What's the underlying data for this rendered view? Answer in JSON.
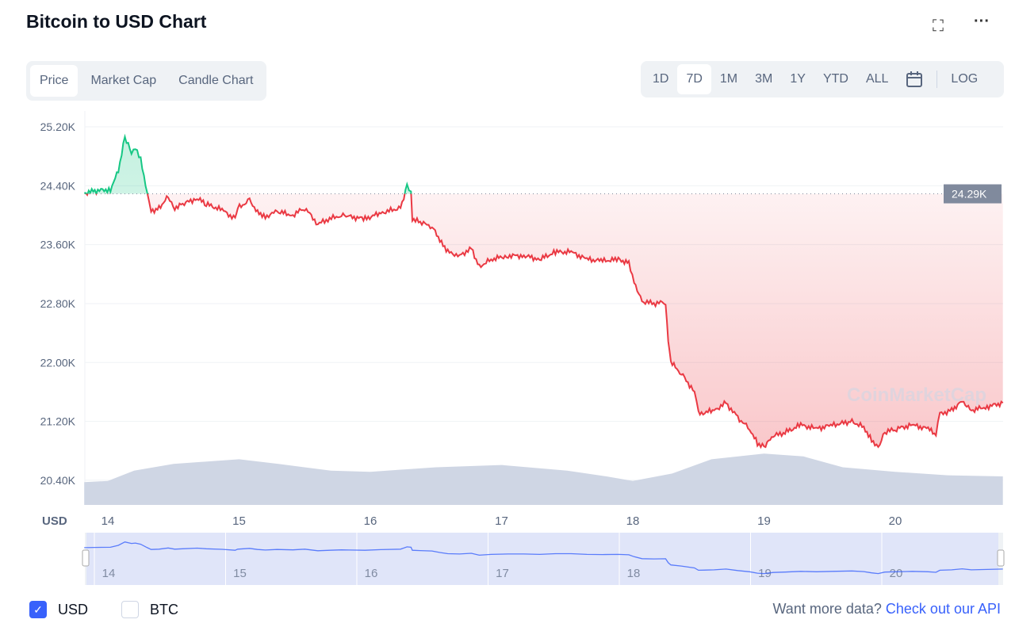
{
  "header": {
    "title": "Bitcoin to USD Chart",
    "fullscreen_icon": "expand-icon",
    "more_icon": "more-dots-icon"
  },
  "tabs": [
    {
      "label": "Price",
      "active": true
    },
    {
      "label": "Market Cap",
      "active": false
    },
    {
      "label": "Candle Chart",
      "active": false
    }
  ],
  "ranges": [
    {
      "label": "1D"
    },
    {
      "label": "7D",
      "active": true
    },
    {
      "label": "1M"
    },
    {
      "label": "3M"
    },
    {
      "label": "1Y"
    },
    {
      "label": "YTD"
    },
    {
      "label": "ALL"
    }
  ],
  "log_label": "LOG",
  "calendar_icon": "calendar-icon",
  "watermark": "CoinMarketCap",
  "footer": {
    "usd_label": "USD",
    "usd_checked": true,
    "btc_label": "BTC",
    "btc_checked": false,
    "api_text": "Want more data?",
    "api_link": "Check out our API"
  },
  "colors": {
    "up": "#16c784",
    "down": "#ea3943",
    "volume": "#cfd6e4",
    "accent": "#3861fb"
  },
  "chart_data": {
    "type": "line",
    "title": "Bitcoin to USD Chart",
    "xlabel": "",
    "ylabel": "USD",
    "currency_label": "USD",
    "ylim": [
      20.0,
      25.45
    ],
    "xlim": [
      13.82,
      20.82
    ],
    "yticks": [
      {
        "v": 25.2,
        "label": "25.20K"
      },
      {
        "v": 24.4,
        "label": "24.40K"
      },
      {
        "v": 23.6,
        "label": "23.60K"
      },
      {
        "v": 22.8,
        "label": "22.80K"
      },
      {
        "v": 22.0,
        "label": "22.00K"
      },
      {
        "v": 21.2,
        "label": "21.20K"
      },
      {
        "v": 20.4,
        "label": "20.40K"
      }
    ],
    "xticks": [
      {
        "v": 14,
        "label": "14"
      },
      {
        "v": 15,
        "label": "15"
      },
      {
        "v": 16,
        "label": "16"
      },
      {
        "v": 17,
        "label": "17"
      },
      {
        "v": 18,
        "label": "18"
      },
      {
        "v": 19,
        "label": "19"
      },
      {
        "v": 20,
        "label": "20"
      }
    ],
    "reference": {
      "value": 24.29,
      "label": "24.29K"
    },
    "price_k": [
      [
        13.82,
        24.3
      ],
      [
        13.9,
        24.33
      ],
      [
        14.02,
        24.35
      ],
      [
        14.08,
        24.6
      ],
      [
        14.13,
        25.05
      ],
      [
        14.18,
        24.85
      ],
      [
        14.21,
        24.9
      ],
      [
        14.25,
        24.75
      ],
      [
        14.3,
        24.3
      ],
      [
        14.33,
        24.05
      ],
      [
        14.39,
        24.1
      ],
      [
        14.46,
        24.25
      ],
      [
        14.51,
        24.1
      ],
      [
        14.57,
        24.15
      ],
      [
        14.68,
        24.23
      ],
      [
        14.75,
        24.15
      ],
      [
        14.87,
        24.07
      ],
      [
        14.97,
        23.95
      ],
      [
        14.99,
        24.1
      ],
      [
        15.08,
        24.2
      ],
      [
        15.14,
        24.05
      ],
      [
        15.2,
        23.98
      ],
      [
        15.29,
        24.05
      ],
      [
        15.41,
        24.0
      ],
      [
        15.5,
        24.1
      ],
      [
        15.6,
        23.88
      ],
      [
        15.69,
        23.95
      ],
      [
        15.78,
        24.0
      ],
      [
        15.84,
        23.98
      ],
      [
        15.96,
        23.95
      ],
      [
        16.08,
        24.03
      ],
      [
        16.23,
        24.1
      ],
      [
        16.28,
        24.4
      ],
      [
        16.31,
        24.35
      ],
      [
        16.32,
        23.95
      ],
      [
        16.38,
        23.9
      ],
      [
        16.47,
        23.85
      ],
      [
        16.53,
        23.65
      ],
      [
        16.59,
        23.5
      ],
      [
        16.68,
        23.45
      ],
      [
        16.77,
        23.55
      ],
      [
        16.83,
        23.3
      ],
      [
        16.92,
        23.4
      ],
      [
        17.05,
        23.45
      ],
      [
        17.17,
        23.45
      ],
      [
        17.29,
        23.4
      ],
      [
        17.41,
        23.5
      ],
      [
        17.53,
        23.5
      ],
      [
        17.65,
        23.4
      ],
      [
        17.77,
        23.38
      ],
      [
        17.89,
        23.4
      ],
      [
        17.97,
        23.35
      ],
      [
        18.01,
        23.1
      ],
      [
        18.07,
        22.83
      ],
      [
        18.16,
        22.8
      ],
      [
        18.25,
        22.82
      ],
      [
        18.27,
        22.3
      ],
      [
        18.29,
        22.0
      ],
      [
        18.37,
        21.85
      ],
      [
        18.47,
        21.6
      ],
      [
        18.5,
        21.3
      ],
      [
        18.62,
        21.35
      ],
      [
        18.71,
        21.45
      ],
      [
        18.8,
        21.25
      ],
      [
        18.89,
        21.1
      ],
      [
        18.95,
        20.9
      ],
      [
        19.0,
        20.85
      ],
      [
        19.07,
        21.0
      ],
      [
        19.16,
        21.05
      ],
      [
        19.28,
        21.15
      ],
      [
        19.4,
        21.1
      ],
      [
        19.52,
        21.15
      ],
      [
        19.67,
        21.2
      ],
      [
        19.76,
        21.12
      ],
      [
        19.82,
        20.95
      ],
      [
        19.87,
        20.85
      ],
      [
        19.92,
        21.05
      ],
      [
        20.01,
        21.1
      ],
      [
        20.13,
        21.15
      ],
      [
        20.25,
        21.1
      ],
      [
        20.31,
        21.02
      ],
      [
        20.34,
        21.3
      ],
      [
        20.43,
        21.35
      ],
      [
        20.51,
        21.48
      ],
      [
        20.58,
        21.35
      ],
      [
        20.7,
        21.4
      ],
      [
        20.82,
        21.45
      ]
    ],
    "volume_rel": [
      [
        13.82,
        0.4
      ],
      [
        14.0,
        0.42
      ],
      [
        14.2,
        0.6
      ],
      [
        14.5,
        0.72
      ],
      [
        15.0,
        0.8
      ],
      [
        15.3,
        0.72
      ],
      [
        15.7,
        0.6
      ],
      [
        16.0,
        0.58
      ],
      [
        16.5,
        0.66
      ],
      [
        17.0,
        0.7
      ],
      [
        17.5,
        0.6
      ],
      [
        17.8,
        0.5
      ],
      [
        18.0,
        0.42
      ],
      [
        18.3,
        0.55
      ],
      [
        18.6,
        0.8
      ],
      [
        19.0,
        0.9
      ],
      [
        19.3,
        0.85
      ],
      [
        19.6,
        0.66
      ],
      [
        20.0,
        0.58
      ],
      [
        20.4,
        0.52
      ],
      [
        20.82,
        0.5
      ]
    ]
  }
}
